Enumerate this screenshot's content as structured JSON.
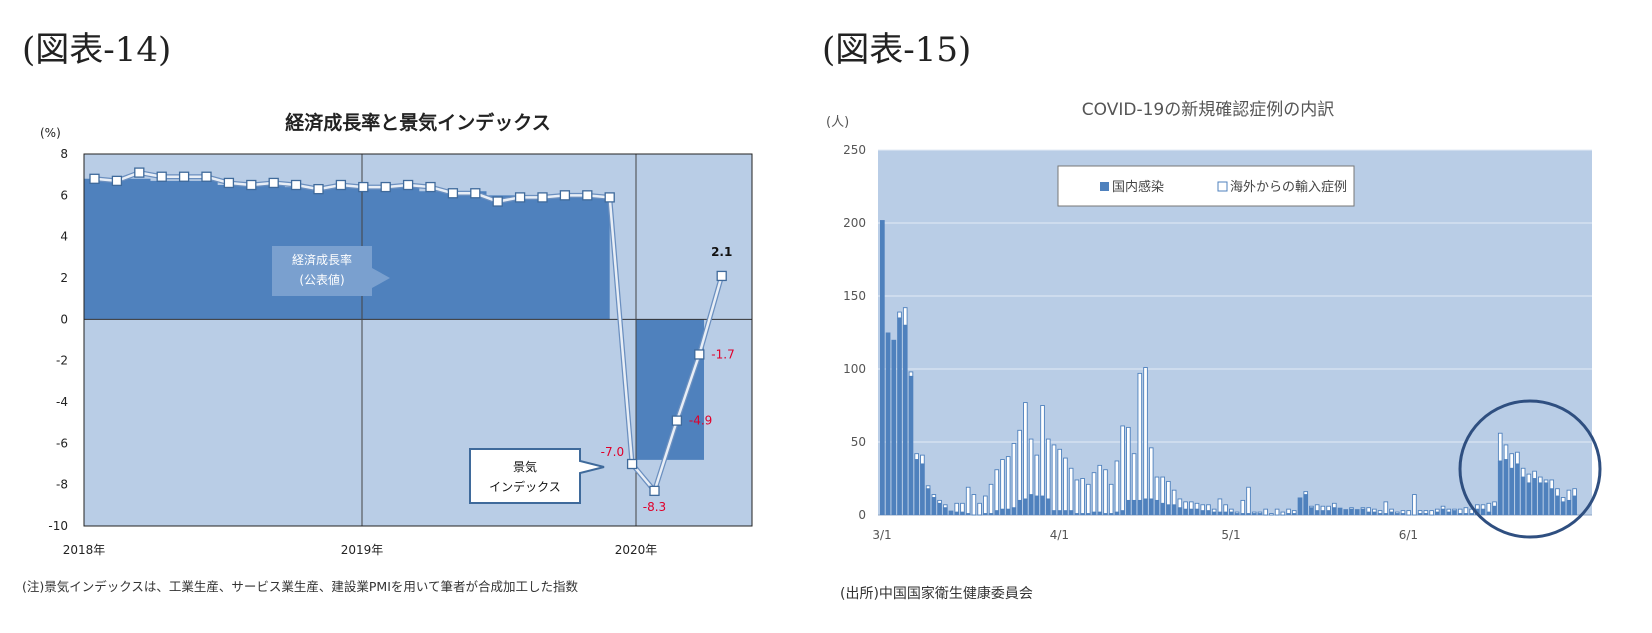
{
  "left_figure": {
    "figure_label": "(図表-14)",
    "note": "(注)景気インデックスは、工業生産、サービス業生産、建設業PMIを用いて筆者が合成加工した指数"
  },
  "right_figure": {
    "figure_label": "(図表-15)",
    "source": "(出所)中国国家衛生健康委員会"
  },
  "chart_data": [
    {
      "type": "bar",
      "title": "経済成長率と景気インデックス",
      "ylabel": "(%)",
      "ylim": [
        -10,
        8
      ],
      "yticks": [
        "8",
        "6",
        "4",
        "2",
        "0",
        "-2",
        "-4",
        "-6",
        "-8",
        "-10"
      ],
      "xtick_labels": [
        "2018年",
        "2019年",
        "2020年"
      ],
      "series": [
        {
          "name": "経済成長率(公表値)",
          "kind": "area",
          "x": [
            "2018Q1",
            "2018Q2",
            "2018Q3",
            "2018Q4",
            "2019Q1",
            "2019Q2",
            "2019Q3",
            "2019Q4",
            "2020Q1"
          ],
          "values": [
            6.8,
            6.7,
            6.5,
            6.4,
            6.4,
            6.2,
            6.0,
            6.0,
            -6.8
          ]
        },
        {
          "name": "景気インデックス",
          "kind": "line",
          "x": [
            "2018-01",
            "2018-02",
            "2018-03",
            "2018-04",
            "2018-05",
            "2018-06",
            "2018-07",
            "2018-08",
            "2018-09",
            "2018-10",
            "2018-11",
            "2018-12",
            "2019-01",
            "2019-02",
            "2019-03",
            "2019-04",
            "2019-05",
            "2019-06",
            "2019-07",
            "2019-08",
            "2019-09",
            "2019-10",
            "2019-11",
            "2019-12",
            "2020-01",
            "2020-02",
            "2020-03",
            "2020-04",
            "2020-05"
          ],
          "values": [
            6.8,
            6.7,
            7.1,
            6.9,
            6.9,
            6.9,
            6.6,
            6.5,
            6.6,
            6.5,
            6.3,
            6.5,
            6.4,
            6.4,
            6.5,
            6.4,
            6.1,
            6.1,
            5.7,
            5.9,
            5.9,
            6.0,
            6.0,
            5.9,
            -7.0,
            -8.3,
            -4.9,
            -1.7,
            2.1
          ]
        }
      ],
      "data_labels": [
        "-7.0",
        "-8.3",
        "-4.9",
        "-1.7",
        "2.1"
      ],
      "annotations": {
        "gdp_callout": [
          "経済成長率",
          "(公表値)"
        ],
        "index_callout": [
          "景気",
          "インデックス"
        ]
      },
      "colors": {
        "plot_bg": "#b9cde6",
        "area": "#4f81bd",
        "line": "#e8eef6",
        "marker_fill": "#ffffff",
        "marker_edge": "#3f6a9b",
        "neg_label": "#e0002a"
      }
    },
    {
      "type": "bar",
      "title": "COVID-19の新規確認症例の内訳",
      "ylabel": "(人)",
      "ylim": [
        0,
        250
      ],
      "yticks": [
        "250",
        "200",
        "150",
        "100",
        "50",
        "0"
      ],
      "xtick_labels": [
        "3/1",
        "4/1",
        "5/1",
        "6/1"
      ],
      "stacked": true,
      "x_start": "3/1",
      "series": [
        {
          "name": "国内感染",
          "values": [
            202,
            125,
            120,
            135,
            130,
            95,
            38,
            35,
            18,
            12,
            8,
            5,
            3,
            2,
            2,
            1,
            0,
            0,
            1,
            1,
            3,
            4,
            4,
            5,
            10,
            11,
            14,
            13,
            13,
            11,
            3,
            3,
            3,
            3,
            1,
            1,
            1,
            2,
            2,
            1,
            1,
            2,
            3,
            10,
            10,
            10,
            11,
            11,
            10,
            8,
            7,
            7,
            5,
            4,
            4,
            4,
            3,
            3,
            2,
            2,
            2,
            2,
            1,
            1,
            1,
            1,
            1,
            0,
            0,
            0,
            0,
            1,
            1,
            12,
            14,
            5,
            3,
            3,
            3,
            5,
            5,
            4,
            4,
            4,
            4,
            2,
            2,
            1,
            1,
            2,
            1,
            1,
            0,
            0,
            1,
            1,
            0,
            2,
            4,
            2,
            3,
            1,
            1,
            1,
            4,
            4,
            2,
            6,
            37,
            38,
            32,
            35,
            26,
            22,
            25,
            22,
            22,
            18,
            13,
            9,
            10,
            13
          ]
        },
        {
          "name": "海外からの輸入症例",
          "values": [
            0,
            0,
            0,
            4,
            12,
            3,
            4,
            6,
            2,
            2,
            2,
            2,
            0,
            6,
            6,
            18,
            14,
            8,
            12,
            20,
            28,
            34,
            36,
            44,
            48,
            66,
            38,
            28,
            62,
            41,
            45,
            42,
            36,
            29,
            23,
            24,
            20,
            27,
            32,
            30,
            20,
            35,
            58,
            50,
            32,
            87,
            90,
            35,
            16,
            18,
            16,
            10,
            6,
            5,
            5,
            4,
            4,
            4,
            2,
            9,
            5,
            2,
            1,
            9,
            18,
            1,
            1,
            4,
            1,
            4,
            2,
            3,
            2,
            0,
            2,
            1,
            4,
            3,
            3,
            3,
            0,
            0,
            1,
            0,
            1,
            3,
            2,
            2,
            8,
            2,
            1,
            2,
            3,
            14,
            2,
            2,
            3,
            2,
            2,
            2,
            1,
            3,
            4,
            3,
            3,
            3,
            6,
            3,
            19,
            10,
            10,
            8,
            6,
            6,
            5,
            4,
            2,
            6,
            5,
            3,
            7,
            5
          ]
        }
      ],
      "colors": {
        "plot_bg": "#b9cde6",
        "domestic": "#4f81bd",
        "imported": "#ffffff",
        "imported_edge": "#4f81bd",
        "circle": "#2f4f80"
      }
    }
  ]
}
